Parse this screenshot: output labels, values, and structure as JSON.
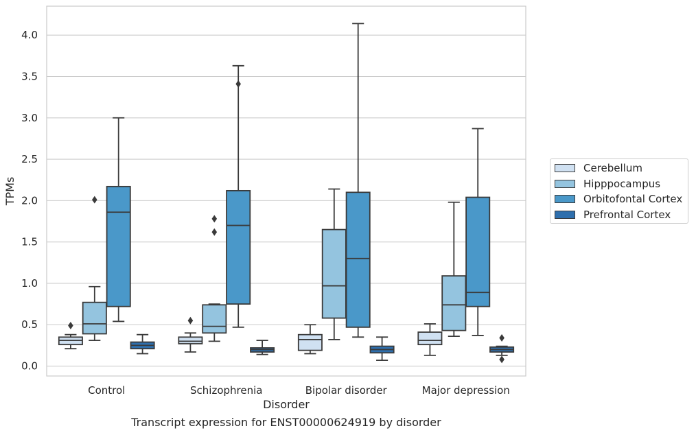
{
  "chart_data": {
    "type": "box",
    "caption": "Transcript expression for ENST00000624919 by disorder",
    "xlabel": "Disorder",
    "ylabel": "TPMs",
    "ylim": [
      -0.12,
      4.35
    ],
    "yticks": [
      "0.0",
      "0.5",
      "1.0",
      "1.5",
      "2.0",
      "2.5",
      "3.0",
      "3.5",
      "4.0"
    ],
    "grid": "horizontal",
    "legend_position": "right",
    "categories": [
      "Control",
      "Schizophrenia",
      "Bipolar disorder",
      "Major depression"
    ],
    "series": [
      {
        "name": "Cerebellum",
        "color": "#d0e1f2",
        "boxes": [
          {
            "whislo": 0.21,
            "q1": 0.26,
            "med": 0.31,
            "q3": 0.35,
            "whishi": 0.38,
            "fliers": [
              0.49
            ]
          },
          {
            "whislo": 0.17,
            "q1": 0.27,
            "med": 0.3,
            "q3": 0.35,
            "whishi": 0.4,
            "fliers": [
              0.55
            ]
          },
          {
            "whislo": 0.15,
            "q1": 0.19,
            "med": 0.32,
            "q3": 0.38,
            "whishi": 0.5,
            "fliers": []
          },
          {
            "whislo": 0.13,
            "q1": 0.26,
            "med": 0.31,
            "q3": 0.41,
            "whishi": 0.51,
            "fliers": []
          }
        ]
      },
      {
        "name": "Hipppocampus",
        "color": "#94c4df",
        "boxes": [
          {
            "whislo": 0.31,
            "q1": 0.39,
            "med": 0.51,
            "q3": 0.77,
            "whishi": 0.96,
            "fliers": [
              2.01
            ]
          },
          {
            "whislo": 0.3,
            "q1": 0.4,
            "med": 0.48,
            "q3": 0.74,
            "whishi": 0.75,
            "fliers": [
              1.62,
              1.78
            ]
          },
          {
            "whislo": 0.32,
            "q1": 0.58,
            "med": 0.97,
            "q3": 1.65,
            "whishi": 2.14,
            "fliers": []
          },
          {
            "whislo": 0.36,
            "q1": 0.43,
            "med": 0.74,
            "q3": 1.09,
            "whishi": 1.98,
            "fliers": []
          }
        ]
      },
      {
        "name": "Orbitofontal Cortex",
        "color": "#4a98c9",
        "boxes": [
          {
            "whislo": 0.54,
            "q1": 0.72,
            "med": 1.86,
            "q3": 2.17,
            "whishi": 3.0,
            "fliers": []
          },
          {
            "whislo": 0.47,
            "q1": 0.75,
            "med": 1.7,
            "q3": 2.12,
            "whishi": 3.63,
            "fliers": [
              3.41
            ]
          },
          {
            "whislo": 0.35,
            "q1": 0.47,
            "med": 1.3,
            "q3": 2.1,
            "whishi": 4.14,
            "fliers": []
          },
          {
            "whislo": 0.37,
            "q1": 0.72,
            "med": 0.89,
            "q3": 2.04,
            "whishi": 2.87,
            "fliers": []
          }
        ]
      },
      {
        "name": "Prefrontal Cortex",
        "color": "#2e6fad",
        "boxes": [
          {
            "whislo": 0.15,
            "q1": 0.21,
            "med": 0.25,
            "q3": 0.29,
            "whishi": 0.38,
            "fliers": []
          },
          {
            "whislo": 0.14,
            "q1": 0.17,
            "med": 0.2,
            "q3": 0.22,
            "whishi": 0.31,
            "fliers": []
          },
          {
            "whislo": 0.07,
            "q1": 0.16,
            "med": 0.2,
            "q3": 0.24,
            "whishi": 0.35,
            "fliers": []
          },
          {
            "whislo": 0.13,
            "q1": 0.17,
            "med": 0.2,
            "q3": 0.23,
            "whishi": 0.24,
            "fliers": [
              0.08,
              0.34
            ]
          }
        ]
      }
    ]
  }
}
